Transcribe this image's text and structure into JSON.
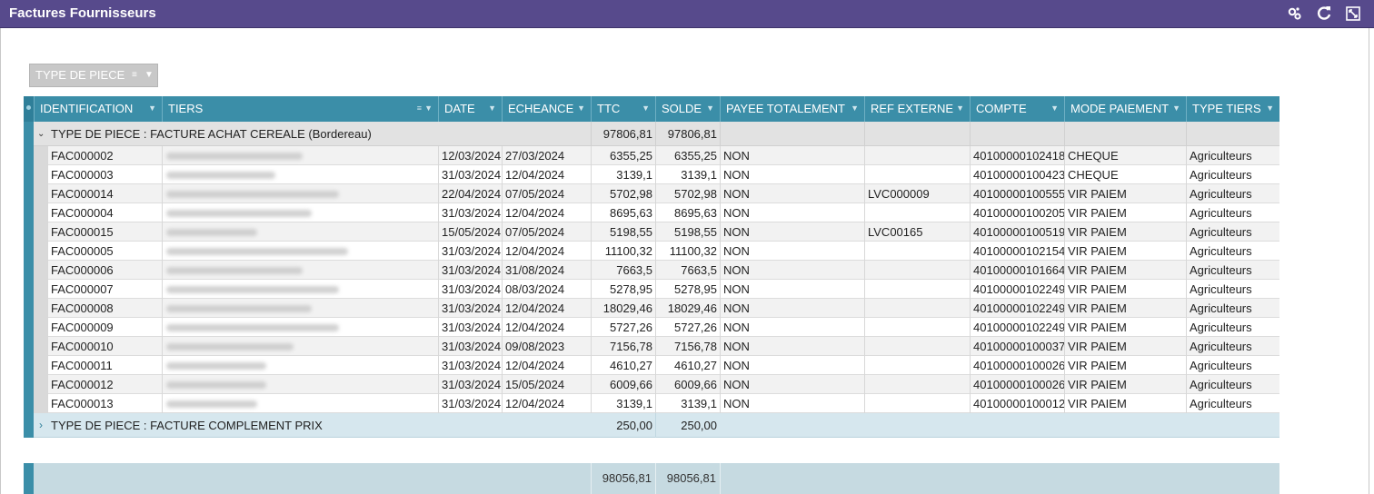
{
  "window": {
    "title": "Factures Fournisseurs"
  },
  "toolbar_icons": [
    "settings-icon",
    "refresh-icon",
    "maximize-icon"
  ],
  "group_by_chip": {
    "label": "TYPE DE PIECE"
  },
  "columns": [
    "IDENTIFICATION",
    "TIERS",
    "DATE",
    "ECHEANCE",
    "TTC",
    "SOLDE",
    "PAYEE TOTALEMENT",
    "REF EXTERNE",
    "COMPTE",
    "MODE PAIEMENT",
    "TYPE TIERS"
  ],
  "groups": [
    {
      "label": "TYPE DE PIECE : FACTURE ACHAT CEREALE (Bordereau)",
      "ttc": "97806,81",
      "solde": "97806,81",
      "expanded": true
    },
    {
      "label": "TYPE DE PIECE : FACTURE COMPLEMENT PRIX",
      "ttc": "250,00",
      "solde": "250,00",
      "expanded": false
    }
  ],
  "rows": [
    {
      "id": "FAC000002",
      "date": "12/03/2024",
      "echeance": "27/03/2024",
      "ttc": "6355,25",
      "solde": "6355,25",
      "payee": "NON",
      "ref": "",
      "compte": "40100000102418",
      "mode": "CHEQUE",
      "type": "Agriculteurs"
    },
    {
      "id": "FAC000003",
      "date": "31/03/2024",
      "echeance": "12/04/2024",
      "ttc": "3139,1",
      "solde": "3139,1",
      "payee": "NON",
      "ref": "",
      "compte": "40100000100423",
      "mode": "CHEQUE",
      "type": "Agriculteurs"
    },
    {
      "id": "FAC000014",
      "date": "22/04/2024",
      "echeance": "07/05/2024",
      "ttc": "5702,98",
      "solde": "5702,98",
      "payee": "NON",
      "ref": "LVC000009",
      "compte": "40100000100555",
      "mode": "VIR PAIEM",
      "type": "Agriculteurs"
    },
    {
      "id": "FAC000004",
      "date": "31/03/2024",
      "echeance": "12/04/2024",
      "ttc": "8695,63",
      "solde": "8695,63",
      "payee": "NON",
      "ref": "",
      "compte": "40100000100205",
      "mode": "VIR PAIEM",
      "type": "Agriculteurs"
    },
    {
      "id": "FAC000015",
      "date": "15/05/2024",
      "echeance": "07/05/2024",
      "ttc": "5198,55",
      "solde": "5198,55",
      "payee": "NON",
      "ref": "LVC00165",
      "compte": "40100000100519",
      "mode": "VIR PAIEM",
      "type": "Agriculteurs"
    },
    {
      "id": "FAC000005",
      "date": "31/03/2024",
      "echeance": "12/04/2024",
      "ttc": "11100,32",
      "solde": "11100,32",
      "payee": "NON",
      "ref": "",
      "compte": "40100000102154",
      "mode": "VIR PAIEM",
      "type": "Agriculteurs"
    },
    {
      "id": "FAC000006",
      "date": "31/03/2024",
      "echeance": "31/08/2024",
      "ttc": "7663,5",
      "solde": "7663,5",
      "payee": "NON",
      "ref": "",
      "compte": "40100000101664",
      "mode": "VIR PAIEM",
      "type": "Agriculteurs"
    },
    {
      "id": "FAC000007",
      "date": "31/03/2024",
      "echeance": "08/03/2024",
      "ttc": "5278,95",
      "solde": "5278,95",
      "payee": "NON",
      "ref": "",
      "compte": "40100000102249",
      "mode": "VIR PAIEM",
      "type": "Agriculteurs"
    },
    {
      "id": "FAC000008",
      "date": "31/03/2024",
      "echeance": "12/04/2024",
      "ttc": "18029,46",
      "solde": "18029,46",
      "payee": "NON",
      "ref": "",
      "compte": "40100000102249",
      "mode": "VIR PAIEM",
      "type": "Agriculteurs"
    },
    {
      "id": "FAC000009",
      "date": "31/03/2024",
      "echeance": "12/04/2024",
      "ttc": "5727,26",
      "solde": "5727,26",
      "payee": "NON",
      "ref": "",
      "compte": "40100000102249",
      "mode": "VIR PAIEM",
      "type": "Agriculteurs"
    },
    {
      "id": "FAC000010",
      "date": "31/03/2024",
      "echeance": "09/08/2023",
      "ttc": "7156,78",
      "solde": "7156,78",
      "payee": "NON",
      "ref": "",
      "compte": "40100000100037",
      "mode": "VIR PAIEM",
      "type": "Agriculteurs"
    },
    {
      "id": "FAC000011",
      "date": "31/03/2024",
      "echeance": "12/04/2024",
      "ttc": "4610,27",
      "solde": "4610,27",
      "payee": "NON",
      "ref": "",
      "compte": "40100000100026",
      "mode": "VIR PAIEM",
      "type": "Agriculteurs"
    },
    {
      "id": "FAC000012",
      "date": "31/03/2024",
      "echeance": "15/05/2024",
      "ttc": "6009,66",
      "solde": "6009,66",
      "payee": "NON",
      "ref": "",
      "compte": "40100000100026",
      "mode": "VIR PAIEM",
      "type": "Agriculteurs"
    },
    {
      "id": "FAC000013",
      "date": "31/03/2024",
      "echeance": "12/04/2024",
      "ttc": "3139,1",
      "solde": "3139,1",
      "payee": "NON",
      "ref": "",
      "compte": "40100000100012",
      "mode": "VIR PAIEM",
      "type": "Agriculteurs"
    }
  ],
  "totals": {
    "ttc": "98056,81",
    "solde": "98056,81"
  },
  "colors": {
    "title_bar": "#574a8c",
    "header": "#3b8ea8",
    "group_row": "#e2e2e2",
    "group_row_collapsed": "#d6e7ee",
    "footer": "#c6dae1"
  }
}
